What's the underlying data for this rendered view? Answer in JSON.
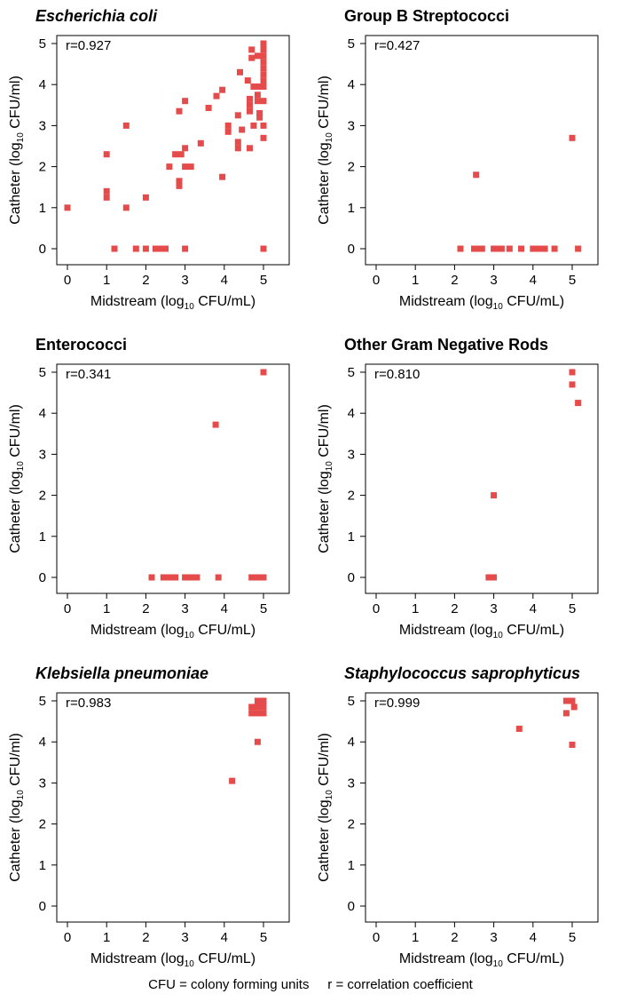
{
  "footnote": {
    "cfu": "CFU = colony forming units",
    "r": "r = correlation coefficient"
  },
  "colors": {
    "point": "#e64b4b"
  },
  "chart_data": [
    {
      "type": "scatter",
      "title": "Escherichia coli",
      "title_style": "italic",
      "r_label": "r=0.927",
      "xlabel": "Midstream (log10 CFU/mL)",
      "ylabel": "Catheter (log10 CFU/ml)",
      "xlim": [
        0,
        5
      ],
      "ylim": [
        0,
        5
      ],
      "xticks": [
        "0",
        "1",
        "2",
        "3",
        "4",
        "5"
      ],
      "yticks": [
        "0",
        "1",
        "2",
        "3",
        "4",
        "5"
      ],
      "points": [
        [
          0,
          1
        ],
        [
          1,
          2.3
        ],
        [
          1,
          1.4
        ],
        [
          1,
          1.25
        ],
        [
          1.2,
          0
        ],
        [
          1.5,
          3
        ],
        [
          1.5,
          1
        ],
        [
          1.75,
          0
        ],
        [
          2,
          1.25
        ],
        [
          2,
          0
        ],
        [
          2.25,
          0
        ],
        [
          2.4,
          0
        ],
        [
          2.5,
          0
        ],
        [
          2.6,
          2
        ],
        [
          2.75,
          2.3
        ],
        [
          2.9,
          2.3
        ],
        [
          2.85,
          3.35
        ],
        [
          2.85,
          1.65
        ],
        [
          2.85,
          1.53
        ],
        [
          3,
          3.6
        ],
        [
          3,
          2.45
        ],
        [
          3,
          2
        ],
        [
          3.15,
          2
        ],
        [
          3,
          0
        ],
        [
          3.4,
          2.57
        ],
        [
          3.6,
          3.43
        ],
        [
          3.8,
          3.72
        ],
        [
          3.95,
          3.87
        ],
        [
          3.95,
          1.75
        ],
        [
          4.1,
          3
        ],
        [
          4.1,
          2.85
        ],
        [
          4.35,
          3.25
        ],
        [
          4.35,
          2.6
        ],
        [
          4.35,
          2.45
        ],
        [
          4.4,
          4.3
        ],
        [
          4.45,
          2.9
        ],
        [
          4.6,
          4.1
        ],
        [
          4.65,
          3.65
        ],
        [
          4.65,
          3.5
        ],
        [
          4.65,
          3.35
        ],
        [
          4.65,
          2.45
        ],
        [
          4.7,
          4.85
        ],
        [
          4.7,
          4.65
        ],
        [
          4.75,
          3.95
        ],
        [
          4.75,
          3
        ],
        [
          4.85,
          4.7
        ],
        [
          4.85,
          3.95
        ],
        [
          4.85,
          3.75
        ],
        [
          4.85,
          3.6
        ],
        [
          4.9,
          3.3
        ],
        [
          4.9,
          3.2
        ],
        [
          5,
          5
        ],
        [
          5,
          4.85
        ],
        [
          5,
          4.7
        ],
        [
          5,
          4.55
        ],
        [
          5,
          4.4
        ],
        [
          5,
          4.25
        ],
        [
          5,
          4.1
        ],
        [
          5,
          3.95
        ],
        [
          5,
          3.6
        ],
        [
          5,
          3
        ],
        [
          5,
          2.7
        ],
        [
          5,
          0
        ]
      ]
    },
    {
      "type": "scatter",
      "title": "Group B Streptococci",
      "title_style": "normal",
      "r_label": "r=0.427",
      "xlabel": "Midstream (log10 CFU/mL)",
      "ylabel": "Catheter (log10 CFU/ml)",
      "xlim": [
        0,
        5
      ],
      "ylim": [
        0,
        5
      ],
      "xticks": [
        "0",
        "1",
        "2",
        "3",
        "4",
        "5"
      ],
      "yticks": [
        "0",
        "1",
        "2",
        "3",
        "4",
        "5"
      ],
      "points": [
        [
          2.55,
          1.8
        ],
        [
          5,
          2.7
        ],
        [
          2.15,
          0
        ],
        [
          2.5,
          0
        ],
        [
          2.6,
          0
        ],
        [
          2.7,
          0
        ],
        [
          3,
          0
        ],
        [
          3.1,
          0
        ],
        [
          3.2,
          0
        ],
        [
          3.4,
          0
        ],
        [
          3.7,
          0
        ],
        [
          4,
          0
        ],
        [
          4.1,
          0
        ],
        [
          4.2,
          0
        ],
        [
          4.3,
          0
        ],
        [
          4.55,
          0
        ],
        [
          5.15,
          0
        ]
      ]
    },
    {
      "type": "scatter",
      "title": "Enterococci",
      "title_style": "normal",
      "r_label": "r=0.341",
      "xlabel": "Midstream (log10 CFU/mL)",
      "ylabel": "Catheter (log10 CFU/ml)",
      "xlim": [
        0,
        5
      ],
      "ylim": [
        0,
        5
      ],
      "xticks": [
        "0",
        "1",
        "2",
        "3",
        "4",
        "5"
      ],
      "yticks": [
        "0",
        "1",
        "2",
        "3",
        "4",
        "5"
      ],
      "points": [
        [
          3.78,
          3.72
        ],
        [
          5,
          5
        ],
        [
          2.15,
          0
        ],
        [
          2.45,
          0
        ],
        [
          2.6,
          0
        ],
        [
          2.75,
          0
        ],
        [
          3,
          0
        ],
        [
          3.15,
          0
        ],
        [
          3.3,
          0
        ],
        [
          3.85,
          0
        ],
        [
          4.7,
          0
        ],
        [
          4.85,
          0
        ],
        [
          5,
          0
        ]
      ]
    },
    {
      "type": "scatter",
      "title": "Other Gram Negative Rods",
      "title_style": "normal",
      "r_label": "r=0.810",
      "xlabel": "Midstream (log10 CFU/mL)",
      "ylabel": "Catheter (log10 CFU/ml)",
      "xlim": [
        0,
        5
      ],
      "ylim": [
        0,
        5
      ],
      "xticks": [
        "0",
        "1",
        "2",
        "3",
        "4",
        "5"
      ],
      "yticks": [
        "0",
        "1",
        "2",
        "3",
        "4",
        "5"
      ],
      "points": [
        [
          2.87,
          0
        ],
        [
          3,
          0
        ],
        [
          3,
          2
        ],
        [
          5,
          5
        ],
        [
          5,
          4.7
        ],
        [
          5.15,
          4.25
        ]
      ]
    },
    {
      "type": "scatter",
      "title": "Klebsiella pneumoniae",
      "title_style": "italic",
      "r_label": "r=0.983",
      "xlabel": "Midstream (log10 CFU/mL)",
      "ylabel": "Catheter (log10 CFU/ml)",
      "xlim": [
        0,
        5
      ],
      "ylim": [
        0,
        5
      ],
      "xticks": [
        "0",
        "1",
        "2",
        "3",
        "4",
        "5"
      ],
      "yticks": [
        "0",
        "1",
        "2",
        "3",
        "4",
        "5"
      ],
      "points": [
        [
          4.2,
          3.05
        ],
        [
          4.85,
          4
        ],
        [
          4.7,
          4.85
        ],
        [
          4.7,
          4.7
        ],
        [
          4.85,
          5
        ],
        [
          4.85,
          4.85
        ],
        [
          4.85,
          4.7
        ],
        [
          5,
          5
        ],
        [
          5,
          4.85
        ],
        [
          5,
          4.7
        ]
      ]
    },
    {
      "type": "scatter",
      "title": "Staphylococcus saprophyticus",
      "title_style": "italic",
      "r_label": "r=0.999",
      "xlabel": "Midstream (log10 CFU/mL)",
      "ylabel": "Catheter (log10 CFU/ml)",
      "xlim": [
        0,
        5
      ],
      "ylim": [
        0,
        5
      ],
      "xticks": [
        "0",
        "1",
        "2",
        "3",
        "4",
        "5"
      ],
      "yticks": [
        "0",
        "1",
        "2",
        "3",
        "4",
        "5"
      ],
      "points": [
        [
          3.65,
          4.32
        ],
        [
          4.85,
          5
        ],
        [
          4.85,
          4.7
        ],
        [
          5,
          5
        ],
        [
          5.05,
          4.85
        ],
        [
          5,
          3.93
        ]
      ]
    }
  ]
}
